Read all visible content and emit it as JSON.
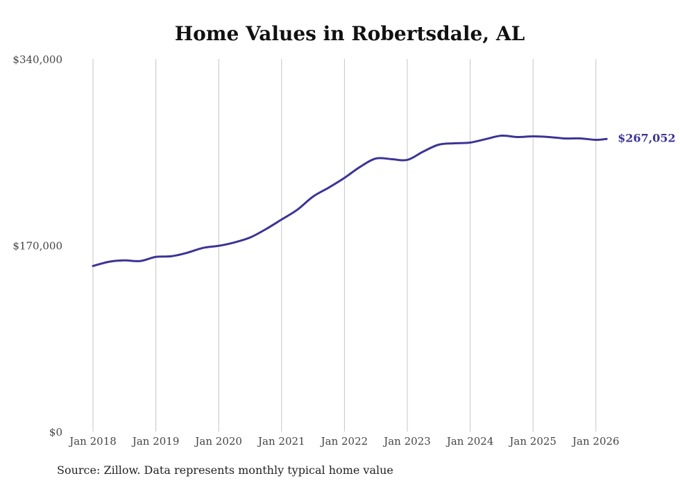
{
  "chart_data": {
    "type": "line",
    "title": "Home Values in Robertsdale, AL",
    "xlabel": "",
    "ylabel": "",
    "ylim": [
      0,
      340000
    ],
    "y_ticks": [
      0,
      170000,
      340000
    ],
    "y_tick_labels": [
      "$0",
      "$170,000",
      "$340,000"
    ],
    "x_tick_labels": [
      "Jan 2018",
      "Jan 2019",
      "Jan 2020",
      "Jan 2021",
      "Jan 2022",
      "Jan 2023",
      "Jan 2024",
      "Jan 2025",
      "Jan 2026"
    ],
    "grid": "vertical",
    "series": [
      {
        "name": "Typical home value",
        "color": "#3b3496",
        "x": [
          2018.0,
          2018.25,
          2018.5,
          2018.75,
          2019.0,
          2019.25,
          2019.5,
          2019.75,
          2020.0,
          2020.25,
          2020.5,
          2020.75,
          2021.0,
          2021.25,
          2021.5,
          2021.75,
          2022.0,
          2022.25,
          2022.5,
          2022.75,
          2023.0,
          2023.25,
          2023.5,
          2023.75,
          2024.0,
          2024.25,
          2024.5,
          2024.75,
          2025.0,
          2025.25,
          2025.5,
          2025.75,
          2026.0,
          2026.17
        ],
        "values": [
          151100,
          154900,
          156200,
          155600,
          159400,
          160000,
          163200,
          167600,
          169500,
          172600,
          177100,
          184700,
          193500,
          202400,
          214400,
          222600,
          231500,
          241600,
          249200,
          248600,
          247900,
          255400,
          261800,
          263100,
          263700,
          266900,
          270000,
          268800,
          269400,
          268800,
          267500,
          267500,
          266200,
          267052
        ]
      }
    ],
    "end_label": "$267,052"
  },
  "source": "Source: Zillow. Data represents monthly typical home value"
}
